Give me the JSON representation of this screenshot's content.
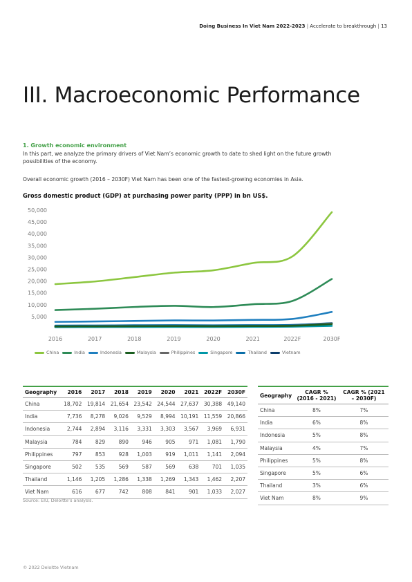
{
  "header": {
    "doc_title": "Doing Business In Viet Nam 2022-2023",
    "subtitle": "Accelerate to breakthrough",
    "page": "13"
  },
  "title": "III. Macroeconomic Performance",
  "section_heading": "1. Growth economic environment",
  "intro": "In this part, we analyze the primary drivers of Viet Nam’s economic growth to date to shed light on the future growth possibilities of the economy.",
  "intro2": "Overall economic growth (2016 – 2030F) Viet Nam has been one of the fastest-growing economies in Asia.",
  "chart_title": "Gross domestic product (GDP) at purchasing power parity (PPP) in bn US$.",
  "chart_data": {
    "type": "line",
    "x": [
      "2016",
      "2017",
      "2018",
      "2019",
      "2020",
      "2021",
      "2022F",
      "2030F"
    ],
    "y_ticks": [
      "50,000",
      "45,000",
      "40,000",
      "35,000",
      "30,000",
      "25,000",
      "20,000",
      "15,000",
      "10,000",
      "5,000"
    ],
    "ylim": [
      0,
      50000
    ],
    "grid": false,
    "legend": "bottom",
    "series": [
      {
        "name": "China",
        "color": "#8cc63f",
        "values": [
          18702,
          19814,
          21654,
          23542,
          24544,
          27637,
          30388,
          49140
        ]
      },
      {
        "name": "India",
        "color": "#2e8b57",
        "values": [
          7736,
          8278,
          9026,
          9529,
          8994,
          10191,
          11559,
          20866
        ]
      },
      {
        "name": "Indonesia",
        "color": "#1f7fbf",
        "values": [
          2744,
          2894,
          3116,
          3331,
          3303,
          3567,
          3969,
          6931
        ]
      },
      {
        "name": "Malaysia",
        "color": "#1b5e20",
        "values": [
          784,
          829,
          890,
          946,
          905,
          971,
          1081,
          1790
        ]
      },
      {
        "name": "Philippines",
        "color": "#666666",
        "values": [
          797,
          853,
          928,
          1003,
          919,
          1011,
          1141,
          2094
        ]
      },
      {
        "name": "Singapore",
        "color": "#0097a7",
        "values": [
          502,
          535,
          569,
          587,
          569,
          638,
          701,
          1035
        ]
      },
      {
        "name": "Thailand",
        "color": "#0a6ea8",
        "values": [
          1146,
          1205,
          1286,
          1338,
          1269,
          1343,
          1462,
          2207
        ]
      },
      {
        "name": "Vietnam",
        "color": "#0b3d6b",
        "values": [
          616,
          677,
          742,
          808,
          841,
          901,
          1033,
          2027
        ]
      }
    ]
  },
  "table1": {
    "headers": [
      "Geography",
      "2016",
      "2017",
      "2018",
      "2019",
      "2020",
      "2021",
      "2022F",
      "2030F"
    ],
    "rows": [
      [
        "China",
        "18,702",
        "19,814",
        "21,654",
        "23,542",
        "24,544",
        "27,637",
        "30,388",
        "49,140"
      ],
      [
        "India",
        "7,736",
        "8,278",
        "9,026",
        "9,529",
        "8,994",
        "10,191",
        "11,559",
        "20,866"
      ],
      [
        "Indonesia",
        "2,744",
        "2,894",
        "3,116",
        "3,331",
        "3,303",
        "3,567",
        "3,969",
        "6,931"
      ],
      [
        "Malaysia",
        "784",
        "829",
        "890",
        "946",
        "905",
        "971",
        "1,081",
        "1,790"
      ],
      [
        "Philippines",
        "797",
        "853",
        "928",
        "1,003",
        "919",
        "1,011",
        "1,141",
        "2,094"
      ],
      [
        "Singapore",
        "502",
        "535",
        "569",
        "587",
        "569",
        "638",
        "701",
        "1,035"
      ],
      [
        "Thailand",
        "1,146",
        "1,205",
        "1,286",
        "1,338",
        "1,269",
        "1,343",
        "1,462",
        "2,207"
      ],
      [
        "Viet Nam",
        "616",
        "677",
        "742",
        "808",
        "841",
        "901",
        "1,033",
        "2,027"
      ]
    ]
  },
  "table2": {
    "headers": [
      "Geography",
      "CAGR % (2016 - 2021)",
      "CAGR % (2021 – 2030F)"
    ],
    "rows": [
      [
        "China",
        "8%",
        "7%"
      ],
      [
        "India",
        "6%",
        "8%"
      ],
      [
        "Indonesia",
        "5%",
        "8%"
      ],
      [
        "Malaysia",
        "4%",
        "7%"
      ],
      [
        "Philippines",
        "5%",
        "8%"
      ],
      [
        "Singapore",
        "5%",
        "6%"
      ],
      [
        "Thailand",
        "3%",
        "6%"
      ],
      [
        "Viet Nam",
        "8%",
        "9%"
      ]
    ]
  },
  "source": "Source: EIU, Deloitte’s analysis.",
  "footer": "© 2022 Deloitte Vietnam"
}
